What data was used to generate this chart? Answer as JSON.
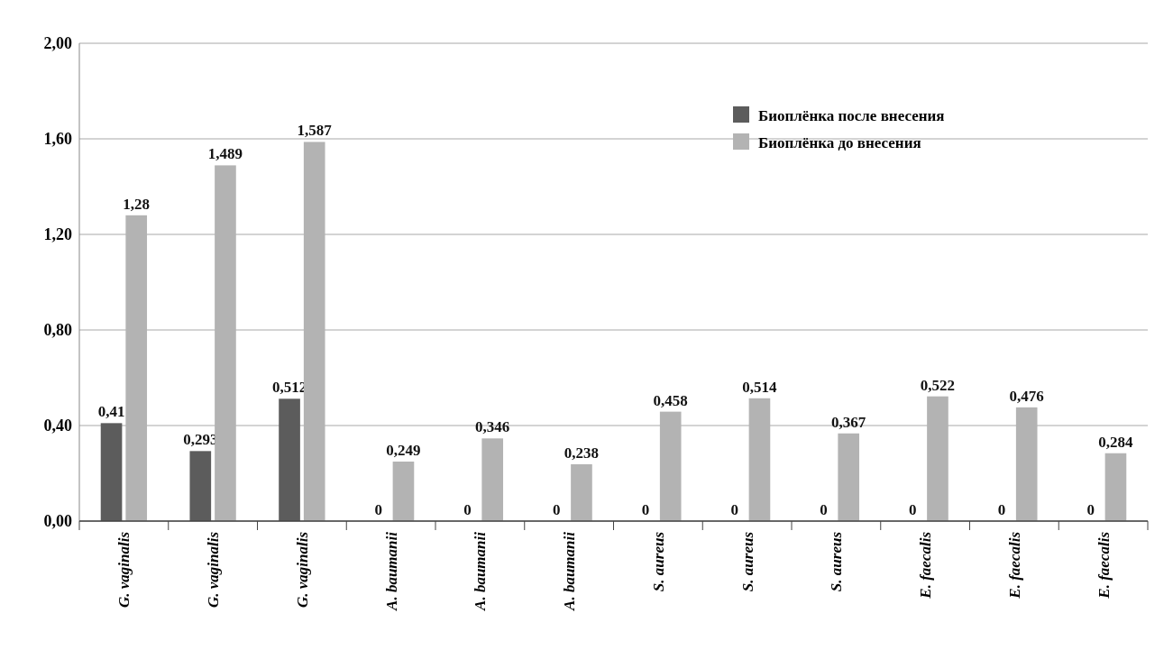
{
  "chart_data": {
    "type": "bar",
    "categories": [
      "G. vaginalis",
      "G. vaginalis",
      "G. vaginalis",
      "A. baumanii",
      "A. baumanii",
      "A. baumanii",
      "S. aureus",
      "S. aureus",
      "S. aureus",
      "E. faecalis",
      "E. faecalis",
      "E. faecalis"
    ],
    "series": [
      {
        "name": "Биоплёнка после внесения",
        "color": "#5c5c5c",
        "values": [
          0.41,
          0.293,
          0.512,
          0,
          0,
          0,
          0,
          0,
          0,
          0,
          0,
          0
        ],
        "value_labels": [
          "0,41",
          "0,293",
          "0,512",
          "0",
          "0",
          "0",
          "0",
          "0",
          "0",
          "0",
          "0",
          "0"
        ]
      },
      {
        "name": "Биоплёнка до внесения",
        "color": "#b3b3b3",
        "values": [
          1.28,
          1.489,
          1.587,
          0.249,
          0.346,
          0.238,
          0.458,
          0.514,
          0.367,
          0.522,
          0.476,
          0.284
        ],
        "value_labels": [
          "1,28",
          "1,489",
          "1,587",
          "0,249",
          "0,346",
          "0,238",
          "0,458",
          "0,514",
          "0,367",
          "0,522",
          "0,476",
          "0,284"
        ]
      }
    ],
    "ylim": [
      0,
      2
    ],
    "yticks": [
      {
        "value": 0,
        "label": "0,00"
      },
      {
        "value": 0.4,
        "label": "0,40"
      },
      {
        "value": 0.8,
        "label": "0,80"
      },
      {
        "value": 1.2,
        "label": "1,20"
      },
      {
        "value": 1.6,
        "label": "1,60"
      },
      {
        "value": 2,
        "label": "2,00"
      }
    ],
    "grid": "y",
    "legend": "top right"
  }
}
